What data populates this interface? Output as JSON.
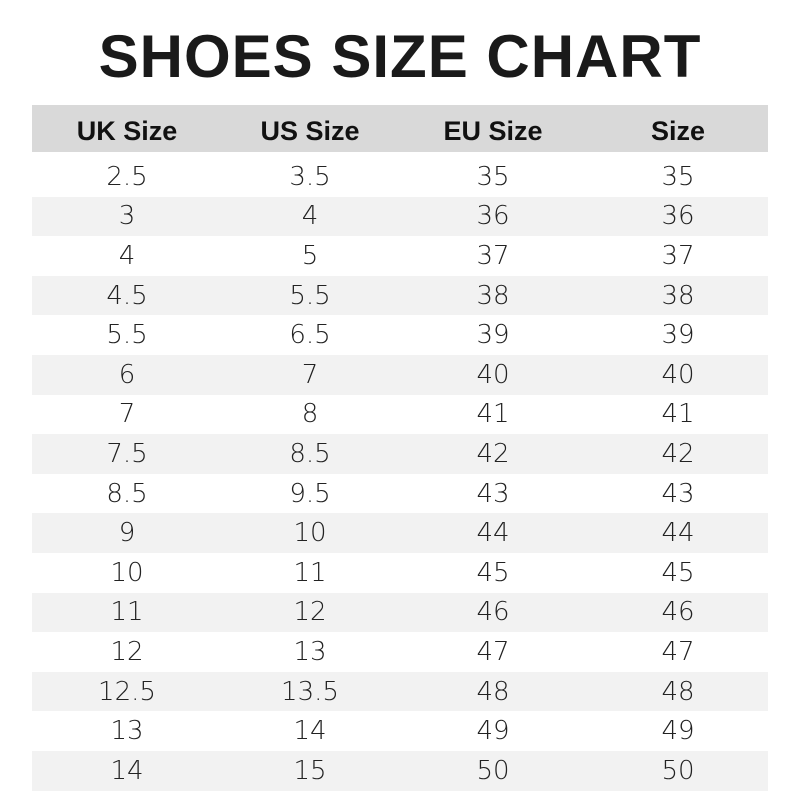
{
  "title": "SHOES SIZE CHART",
  "colors": {
    "header_bg": "#d9d9d9",
    "stripe_bg": "#f2f2f2"
  },
  "chart_data": {
    "type": "table",
    "title": "SHOES SIZE CHART",
    "columns": [
      "UK Size",
      "US Size",
      "EU Size",
      "Size"
    ],
    "rows": [
      [
        "2.5",
        "3.5",
        "35",
        "35"
      ],
      [
        "3",
        "4",
        "36",
        "36"
      ],
      [
        "4",
        "5",
        "37",
        "37"
      ],
      [
        "4.5",
        "5.5",
        "38",
        "38"
      ],
      [
        "5.5",
        "6.5",
        "39",
        "39"
      ],
      [
        "6",
        "7",
        "40",
        "40"
      ],
      [
        "7",
        "8",
        "41",
        "41"
      ],
      [
        "7.5",
        "8.5",
        "42",
        "42"
      ],
      [
        "8.5",
        "9.5",
        "43",
        "43"
      ],
      [
        "9",
        "10",
        "44",
        "44"
      ],
      [
        "10",
        "11",
        "45",
        "45"
      ],
      [
        "11",
        "12",
        "46",
        "46"
      ],
      [
        "12",
        "13",
        "47",
        "47"
      ],
      [
        "12.5",
        "13.5",
        "48",
        "48"
      ],
      [
        "13",
        "14",
        "49",
        "49"
      ],
      [
        "14",
        "15",
        "50",
        "50"
      ]
    ]
  }
}
